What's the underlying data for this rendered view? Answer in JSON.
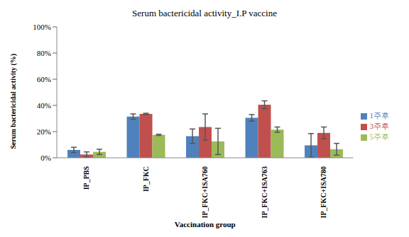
{
  "chart_data": {
    "type": "bar",
    "title": "Serum bactericidal activity_I.P vaccine",
    "x_label": "Vaccination group",
    "y_label": "Serum bactericidal activity (%)",
    "categories": [
      "IP_PBS",
      "IP_FKC",
      "IP_FKC+ISA760",
      "IP_FKC+ISA763",
      "IP_FKC+ISA780"
    ],
    "series": [
      {
        "name": "1주후",
        "color": "#4f81bd",
        "values": [
          6,
          31.5,
          16.5,
          30.5,
          9.5
        ],
        "errors": [
          2,
          2,
          5.5,
          2.5,
          9
        ]
      },
      {
        "name": "3주후",
        "color": "#c0504d",
        "values": [
          2.5,
          33.5,
          23.5,
          40.5,
          19
        ],
        "errors": [
          2,
          0.5,
          10,
          3,
          4.5
        ]
      },
      {
        "name": "5주후",
        "color": "#9bbb59",
        "values": [
          4.5,
          17.5,
          12.5,
          21.5,
          6.5
        ],
        "errors": [
          2,
          0.5,
          10,
          2,
          4.5
        ]
      }
    ],
    "ylim": [
      0,
      100
    ],
    "yticks": [
      {
        "value": 0,
        "label": "0%"
      },
      {
        "value": 20,
        "label": "20%"
      },
      {
        "value": 40,
        "label": "40%"
      },
      {
        "value": 60,
        "label": "60%"
      },
      {
        "value": 80,
        "label": "80%"
      },
      {
        "value": 100,
        "label": "100%"
      }
    ],
    "grid": false,
    "legend": "right"
  }
}
